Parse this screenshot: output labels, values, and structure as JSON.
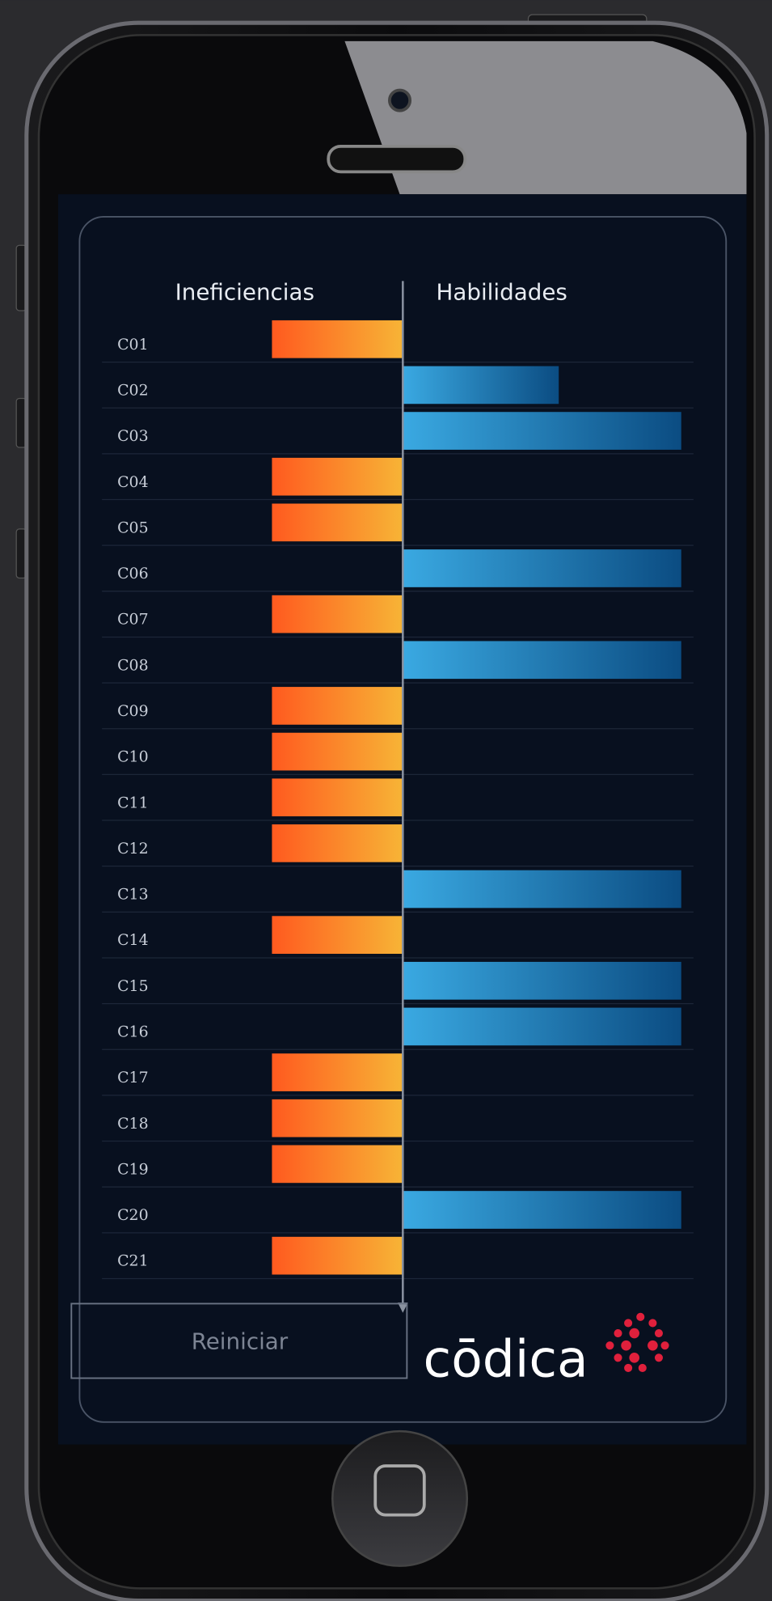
{
  "chart_data": {
    "type": "diverging-bar",
    "categories": [
      "C01",
      "C02",
      "C03",
      "C04",
      "C05",
      "C06",
      "C07",
      "C08",
      "C09",
      "C10",
      "C11",
      "C12",
      "C13",
      "C14",
      "C15",
      "C16",
      "C17",
      "C18",
      "C19",
      "C20",
      "C21"
    ],
    "series": [
      {
        "name": "Ineficiencias",
        "direction": "left",
        "colors": [
          "#ff5a1f",
          "#f7b436"
        ],
        "values": [
          47,
          null,
          null,
          47,
          47,
          null,
          47,
          null,
          47,
          47,
          47,
          47,
          null,
          47,
          null,
          null,
          47,
          47,
          47,
          null,
          47
        ]
      },
      {
        "name": "Habilidades",
        "direction": "right",
        "colors": [
          "#3aa9e2",
          "#0b4c82"
        ],
        "values": [
          null,
          56,
          100,
          null,
          null,
          100,
          null,
          100,
          null,
          null,
          null,
          null,
          100,
          null,
          100,
          100,
          null,
          null,
          null,
          100,
          null
        ]
      }
    ]
  },
  "button": {
    "label": "Reiniciar"
  },
  "logo": {
    "text": "cōdica"
  }
}
